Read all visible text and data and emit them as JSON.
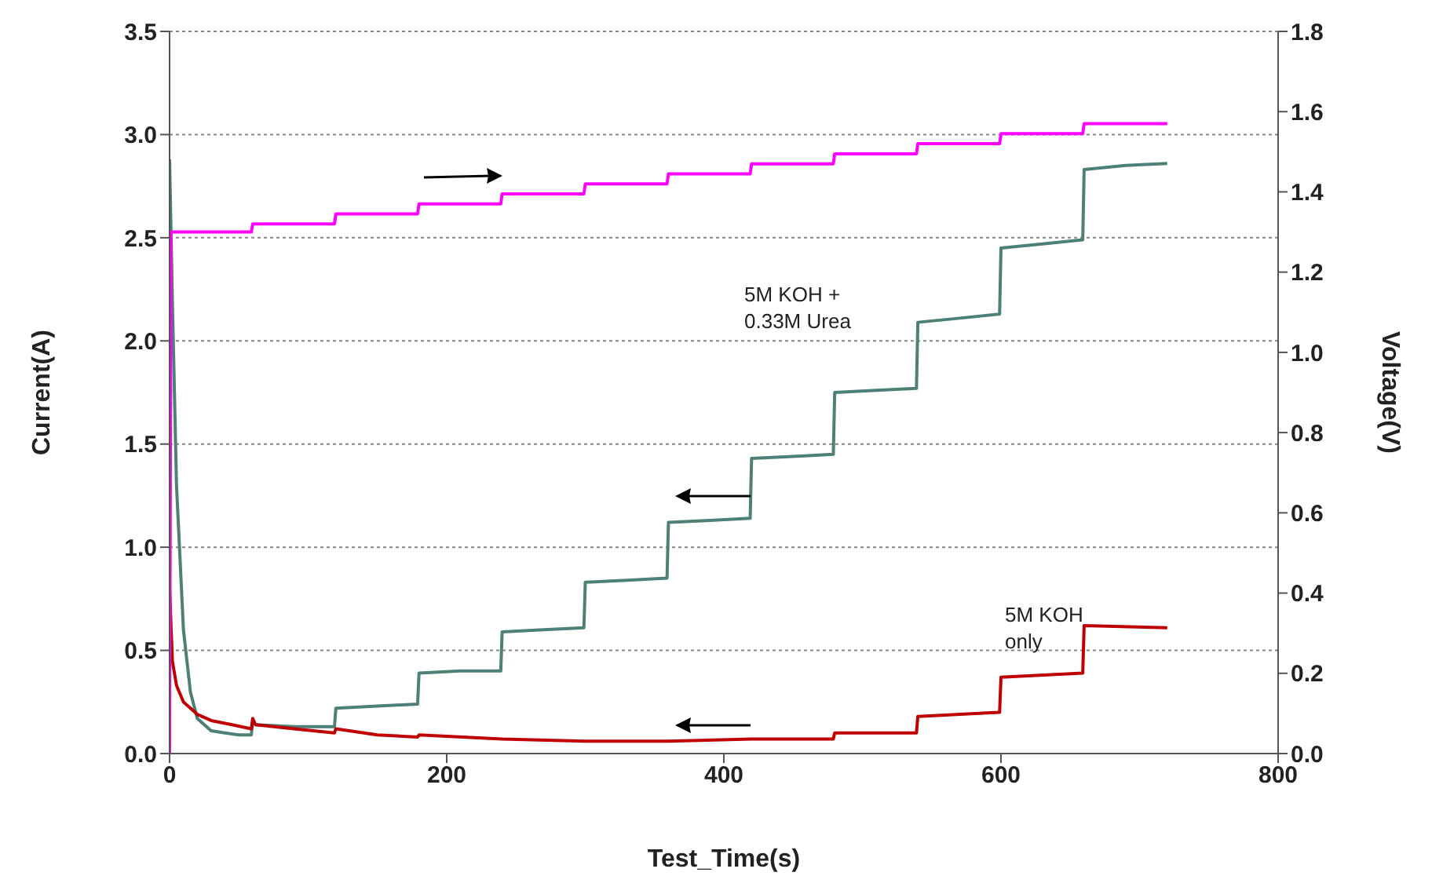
{
  "chart_data": {
    "type": "line",
    "xlabel": "Test_Time(s)",
    "ylabel": "Current(A)",
    "y2label": "Voltage(V)",
    "xlim": [
      0,
      800
    ],
    "xticks": [
      0,
      200,
      400,
      600,
      800
    ],
    "ylim": [
      0,
      3.5
    ],
    "yticks": [
      {
        "value": 0,
        "label": "0.0"
      },
      {
        "value": 0.5,
        "label": "0.5"
      },
      {
        "value": 1,
        "label": "1.0"
      },
      {
        "value": 1.5,
        "label": "1.5"
      },
      {
        "value": 2,
        "label": "2.0"
      },
      {
        "value": 2.5,
        "label": "2.5"
      },
      {
        "value": 3,
        "label": "3.0"
      },
      {
        "value": 3.5,
        "label": "3.5"
      }
    ],
    "y2lim": [
      0,
      1.8
    ],
    "y2ticks": [
      {
        "value": 0,
        "label": "0.0"
      },
      {
        "value": 0.2,
        "label": "0.2"
      },
      {
        "value": 0.4,
        "label": "0.4"
      },
      {
        "value": 0.6,
        "label": "0.6"
      },
      {
        "value": 0.8,
        "label": "0.8"
      },
      {
        "value": 1,
        "label": "1.0"
      },
      {
        "value": 1.2,
        "label": "1.2"
      },
      {
        "value": 1.4,
        "label": "1.4"
      },
      {
        "value": 1.6,
        "label": "1.6"
      },
      {
        "value": 1.8,
        "label": "1.8"
      }
    ],
    "grid": "y",
    "legend": false,
    "marker": "none",
    "line_style": "solid",
    "series": [
      {
        "color": "#4d8076",
        "x": [
          0,
          2,
          5,
          10,
          15,
          20,
          30,
          40,
          50,
          59,
          60,
          62,
          90,
          119,
          120,
          150,
          179,
          180,
          210,
          239,
          240,
          270,
          299,
          300,
          330,
          359,
          360,
          390,
          419,
          420,
          450,
          479,
          480,
          510,
          539,
          540,
          570,
          599,
          600,
          630,
          659,
          660,
          690,
          720
        ],
        "values": [
          2.88,
          2.2,
          1.3,
          0.6,
          0.3,
          0.17,
          0.11,
          0.1,
          0.09,
          0.09,
          0.16,
          0.14,
          0.13,
          0.13,
          0.22,
          0.23,
          0.24,
          0.39,
          0.4,
          0.4,
          0.59,
          0.6,
          0.61,
          0.83,
          0.84,
          0.85,
          1.12,
          1.13,
          1.14,
          1.43,
          1.44,
          1.45,
          1.75,
          1.76,
          1.77,
          2.09,
          2.11,
          2.13,
          2.45,
          2.47,
          2.49,
          2.83,
          2.85,
          2.86
        ]
      },
      {
        "color": "#c00000",
        "x": [
          0,
          2,
          5,
          10,
          20,
          30,
          45,
          59,
          60,
          62,
          90,
          119,
          120,
          150,
          179,
          180,
          240,
          300,
          360,
          420,
          479,
          480,
          539,
          540,
          599,
          600,
          659,
          660,
          720
        ],
        "values": [
          0.8,
          0.45,
          0.33,
          0.25,
          0.19,
          0.16,
          0.14,
          0.12,
          0.17,
          0.14,
          0.12,
          0.1,
          0.12,
          0.09,
          0.08,
          0.09,
          0.07,
          0.06,
          0.06,
          0.07,
          0.07,
          0.1,
          0.1,
          0.18,
          0.2,
          0.37,
          0.39,
          0.62,
          0.61
        ]
      },
      {
        "color": "#ff00ff",
        "axis": "y2",
        "x": [
          0,
          1,
          59,
          60,
          119,
          120,
          179,
          180,
          239,
          240,
          299,
          300,
          359,
          360,
          419,
          420,
          479,
          480,
          539,
          540,
          599,
          600,
          659,
          660,
          720
        ],
        "values": [
          0,
          1.3,
          1.3,
          1.32,
          1.32,
          1.345,
          1.345,
          1.37,
          1.37,
          1.395,
          1.395,
          1.42,
          1.42,
          1.445,
          1.445,
          1.47,
          1.47,
          1.495,
          1.495,
          1.52,
          1.52,
          1.545,
          1.545,
          1.57,
          1.57
        ]
      }
    ],
    "annotations": [
      "5M KOH + 0.33M Urea",
      "5M KOH only"
    ]
  }
}
